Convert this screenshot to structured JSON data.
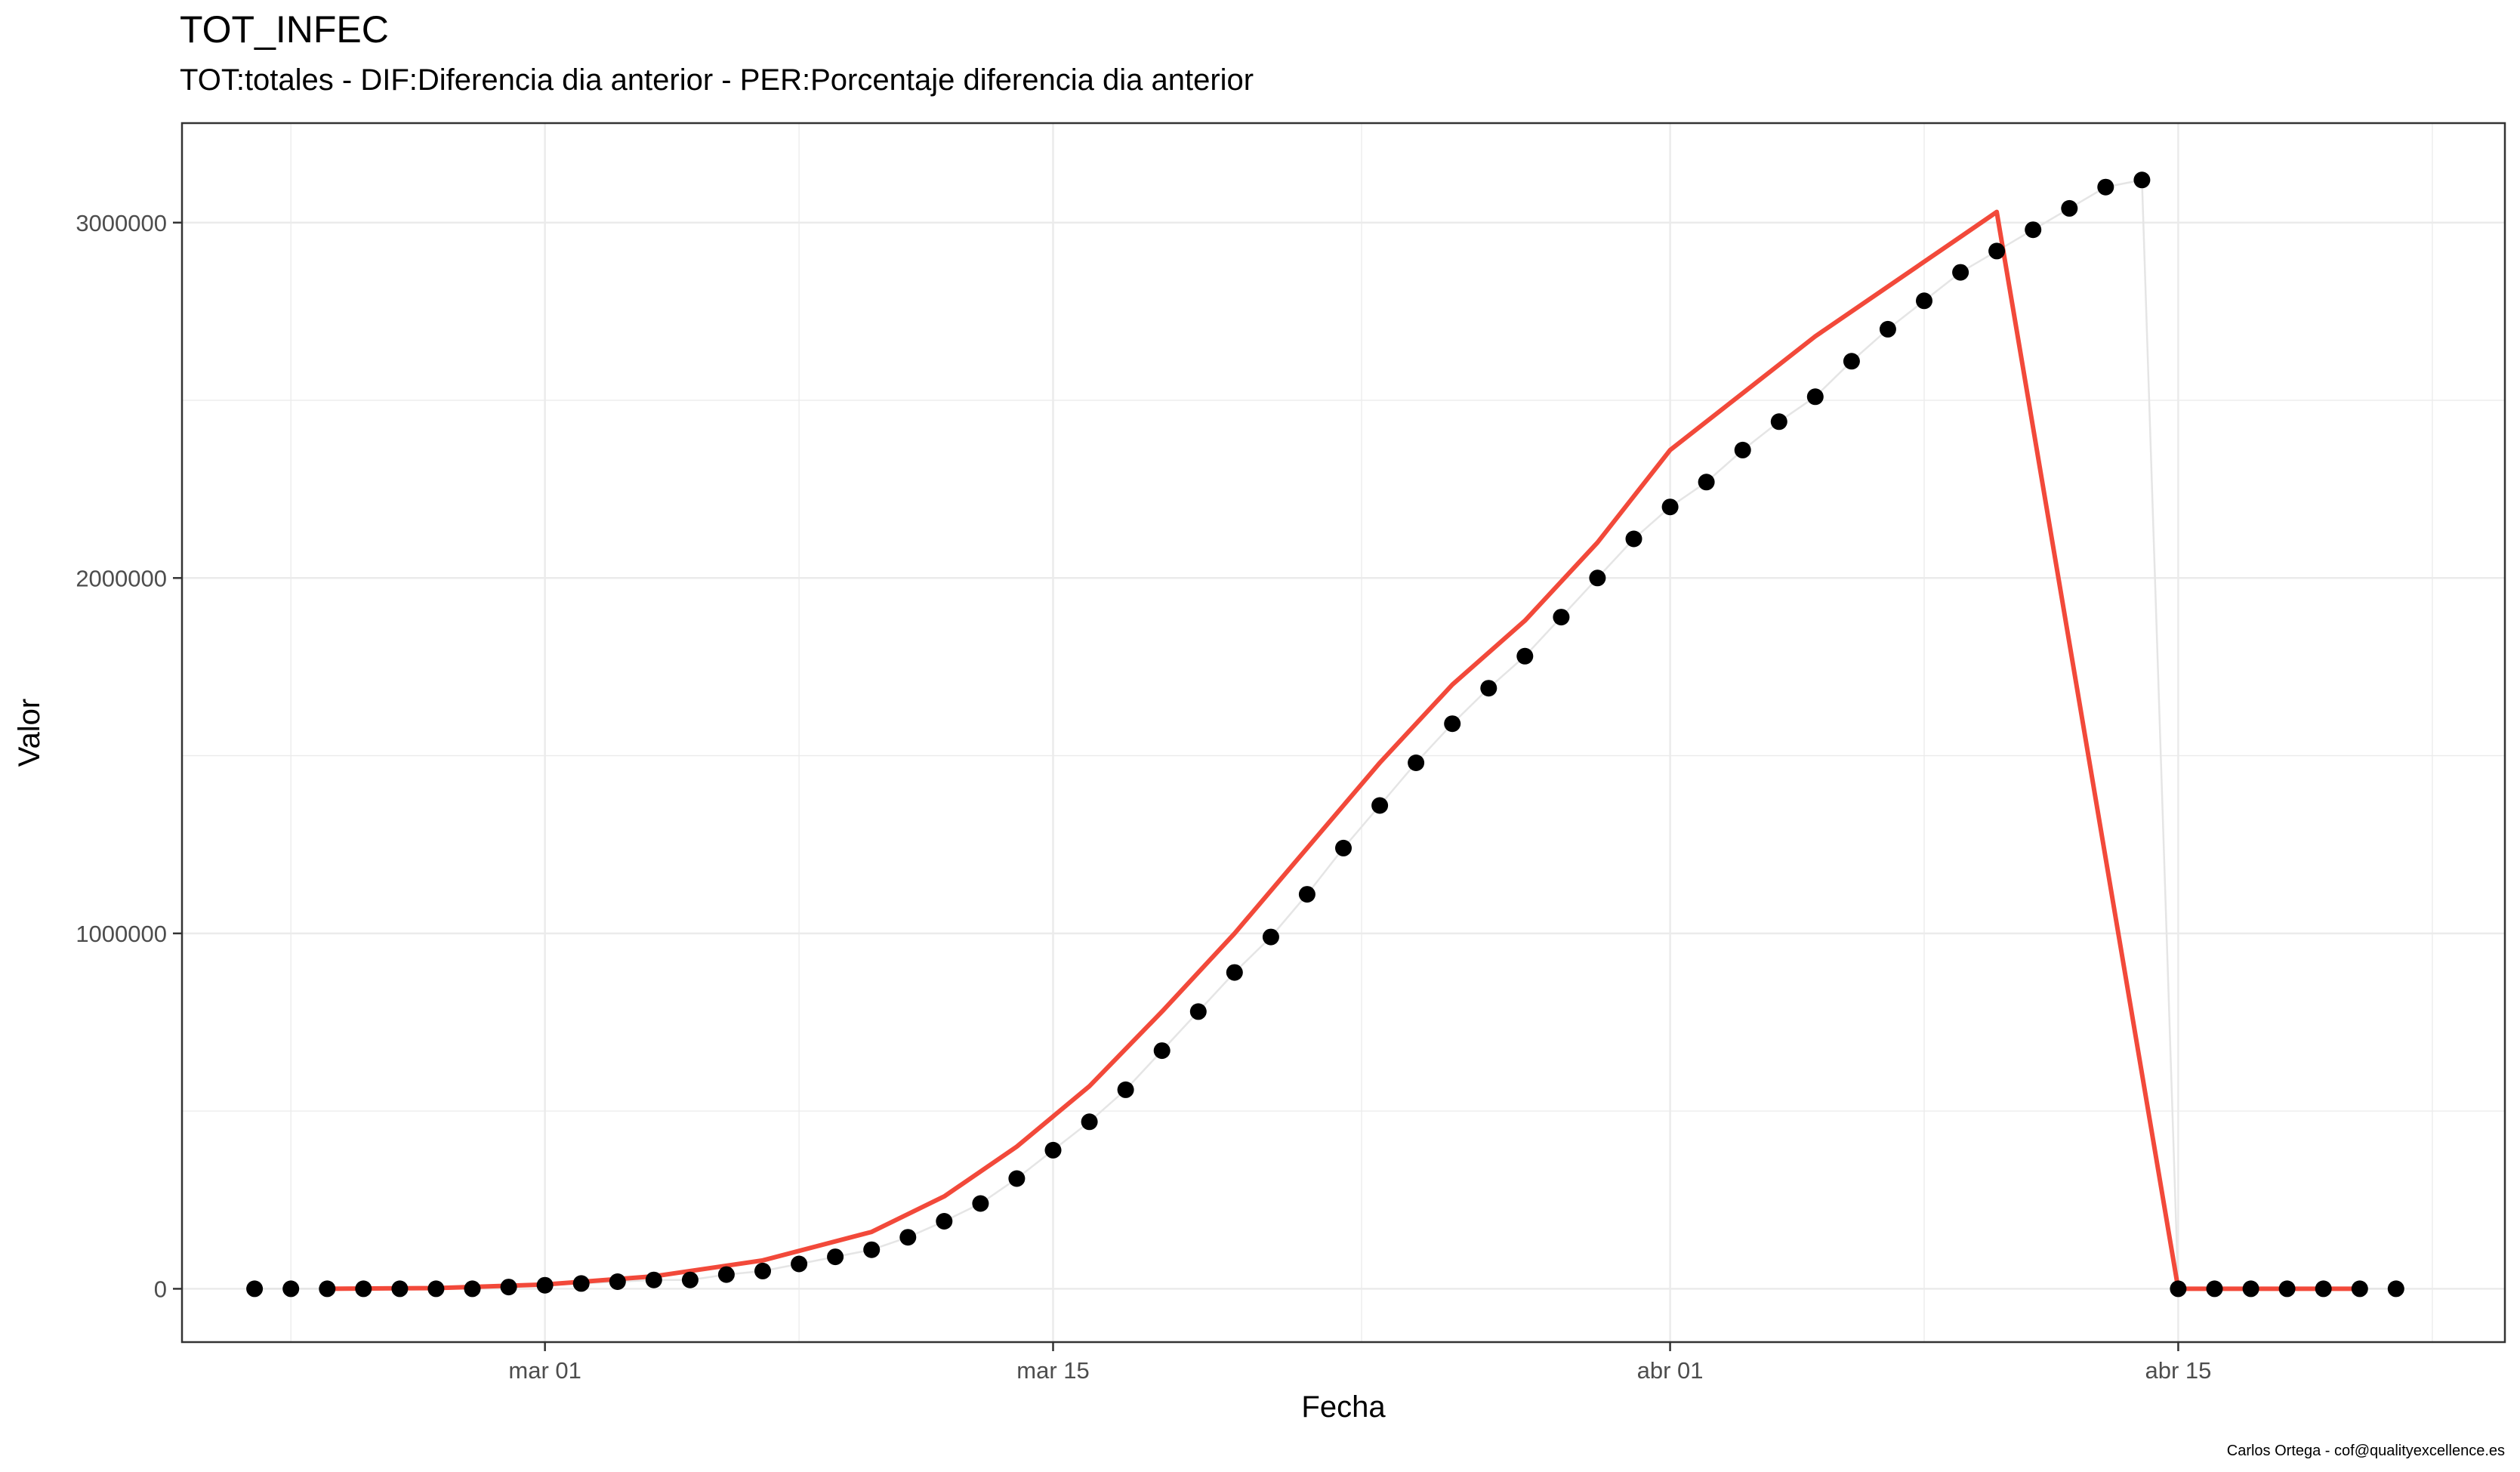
{
  "chart_data": {
    "type": "line",
    "title": "TOT_INFEC",
    "subtitle": "TOT:totales - DIF:Diferencia dia anterior - PER:Porcentaje diferencia dia anterior",
    "xlabel": "Fecha",
    "ylabel": "Valor",
    "caption": "Carlos Ortega - cof@qualityexcellence.es",
    "x_axis": {
      "type": "date",
      "range": [
        "2020-02-20",
        "2020-04-24"
      ],
      "ticks": [
        {
          "date": "2020-03-01",
          "label": "mar 01"
        },
        {
          "date": "2020-03-15",
          "label": "mar 15"
        },
        {
          "date": "2020-04-01",
          "label": "abr 01"
        },
        {
          "date": "2020-04-15",
          "label": "abr 15"
        }
      ]
    },
    "y_axis": {
      "ylim": [
        -150000,
        3280000
      ],
      "ticks": [
        0,
        1000000,
        2000000,
        3000000
      ],
      "tick_labels": [
        "0",
        "1000000",
        "2000000",
        "3000000"
      ]
    },
    "grid": true,
    "legend": "none",
    "colors": {
      "points": "#000000",
      "observed_line": "#e5e5e5",
      "smooth_line": "#f2493a",
      "grid": "#ebebeb",
      "panel_border": "#333333"
    },
    "series": [
      {
        "kind": "points",
        "x": [
          "2020-02-22",
          "2020-02-23",
          "2020-02-24",
          "2020-02-25",
          "2020-02-26",
          "2020-02-27",
          "2020-02-28",
          "2020-02-29",
          "2020-03-01",
          "2020-03-02",
          "2020-03-03",
          "2020-03-04",
          "2020-03-05",
          "2020-03-06",
          "2020-03-07",
          "2020-03-08",
          "2020-03-09",
          "2020-03-10",
          "2020-03-11",
          "2020-03-12",
          "2020-03-13",
          "2020-03-14",
          "2020-03-15",
          "2020-03-16",
          "2020-03-17",
          "2020-03-18",
          "2020-03-19",
          "2020-03-20",
          "2020-03-21",
          "2020-03-22",
          "2020-03-23",
          "2020-03-24",
          "2020-03-25",
          "2020-03-26",
          "2020-03-27",
          "2020-03-28",
          "2020-03-29",
          "2020-03-30",
          "2020-03-31",
          "2020-04-01",
          "2020-04-02",
          "2020-04-03",
          "2020-04-04",
          "2020-04-05",
          "2020-04-06",
          "2020-04-07",
          "2020-04-08",
          "2020-04-09",
          "2020-04-10",
          "2020-04-11",
          "2020-04-12",
          "2020-04-13",
          "2020-04-14",
          "2020-04-15",
          "2020-04-16",
          "2020-04-17",
          "2020-04-18",
          "2020-04-19",
          "2020-04-20",
          "2020-04-21"
        ],
        "y": [
          0,
          0,
          0,
          0,
          0,
          0,
          0,
          5000,
          10000,
          15000,
          20000,
          25000,
          25000,
          40000,
          50000,
          70000,
          90000,
          110000,
          145000,
          190000,
          240000,
          310000,
          390000,
          470000,
          560000,
          670000,
          780000,
          890000,
          990000,
          1110000,
          1240000,
          1360000,
          1480000,
          1590000,
          1690000,
          1780000,
          1890000,
          2000000,
          2110000,
          2200000,
          2270000,
          2360000,
          2440000,
          2510000,
          2610000,
          2700000,
          2780000,
          2860000,
          2920000,
          2980000,
          3040000,
          3100000,
          3120000,
          0,
          0,
          0,
          0,
          0,
          0,
          0
        ]
      },
      {
        "kind": "smooth",
        "x": [
          "2020-02-24",
          "2020-02-27",
          "2020-03-01",
          "2020-03-04",
          "2020-03-07",
          "2020-03-10",
          "2020-03-12",
          "2020-03-14",
          "2020-03-16",
          "2020-03-18",
          "2020-03-20",
          "2020-03-22",
          "2020-03-24",
          "2020-03-26",
          "2020-03-28",
          "2020-03-30",
          "2020-04-01",
          "2020-04-03",
          "2020-04-05",
          "2020-04-07",
          "2020-04-09",
          "2020-04-10",
          "2020-04-15",
          "2020-04-20"
        ],
        "y": [
          0,
          2000,
          12000,
          35000,
          80000,
          160000,
          260000,
          400000,
          570000,
          780000,
          1000000,
          1240000,
          1480000,
          1700000,
          1880000,
          2100000,
          2360000,
          2520000,
          2680000,
          2820000,
          2960000,
          3030000,
          0,
          0
        ]
      }
    ]
  }
}
